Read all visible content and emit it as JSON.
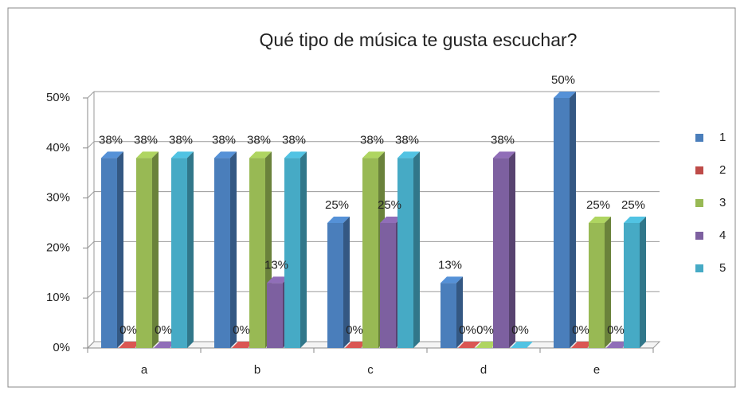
{
  "chart_data": {
    "type": "bar3d",
    "title": "Qué tipo de música te gusta escuchar?",
    "categories": [
      "a",
      "b",
      "c",
      "d",
      "e"
    ],
    "series": [
      {
        "name": "1",
        "color": "#4a7ebb",
        "values": [
          38,
          38,
          25,
          13,
          50
        ],
        "value_labels": [
          "38%",
          "38%",
          "25%",
          "13%",
          "50%"
        ]
      },
      {
        "name": "2",
        "color": "#be4b48",
        "values": [
          0,
          0,
          0,
          0,
          0
        ],
        "value_labels": [
          "0%",
          "0%",
          "0%",
          "0%",
          "0%"
        ]
      },
      {
        "name": "3",
        "color": "#98b954",
        "values": [
          38,
          38,
          38,
          0,
          25
        ],
        "value_labels": [
          "38%",
          "38%",
          "38%",
          "0%",
          "25%"
        ]
      },
      {
        "name": "4",
        "color": "#7d60a0",
        "values": [
          0,
          13,
          25,
          38,
          0
        ],
        "value_labels": [
          "0%",
          "13%",
          "25%",
          "38%",
          "0%"
        ]
      },
      {
        "name": "5",
        "color": "#46aac5",
        "values": [
          38,
          38,
          38,
          0,
          25
        ],
        "value_labels": [
          "38%",
          "38%",
          "38%",
          "0%",
          "25%"
        ]
      }
    ],
    "ylim": [
      0,
      50
    ],
    "yticks": [
      {
        "value": 0,
        "label": "0%"
      },
      {
        "value": 10,
        "label": "10%"
      },
      {
        "value": 20,
        "label": "20%"
      },
      {
        "value": 30,
        "label": "30%"
      },
      {
        "value": 40,
        "label": "40%"
      },
      {
        "value": 50,
        "label": "50%"
      }
    ],
    "grid": true,
    "legend": "right"
  }
}
